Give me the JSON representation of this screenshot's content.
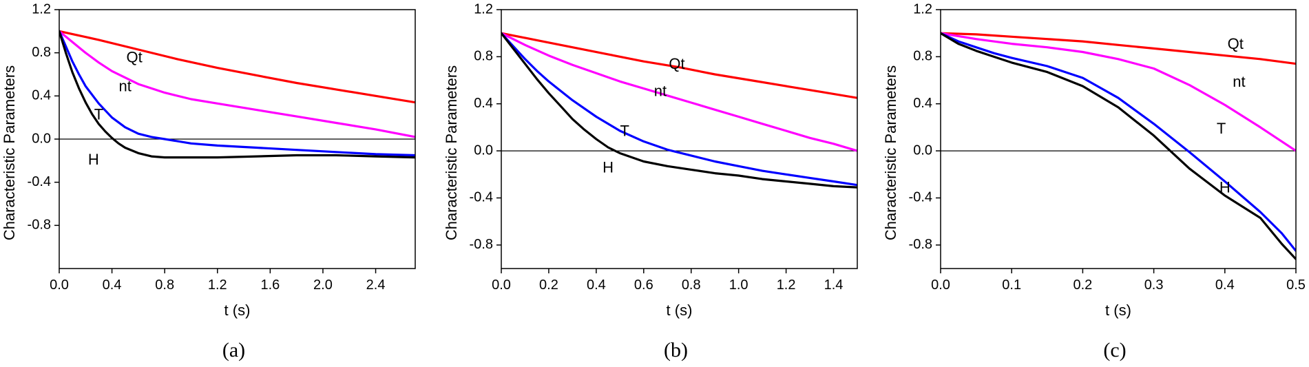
{
  "chart_data": [
    {
      "type": "line",
      "panel_label": "(a)",
      "xlabel": "t (s)",
      "ylabel": "Characteristic Parameters",
      "xlim": [
        0,
        2.7
      ],
      "ylim": [
        -1.2,
        1.2
      ],
      "xticks": [
        0.0,
        0.4,
        0.8,
        1.2,
        1.6,
        2.0,
        2.4
      ],
      "yticks": [
        -0.8,
        -0.4,
        0.0,
        0.4,
        0.8,
        1.2
      ],
      "xtick_labels": [
        "0.0",
        "0.4",
        "0.8",
        "1.2",
        "1.6",
        "2.0",
        "2.4"
      ],
      "ytick_labels": [
        "-0.8",
        "-0.4",
        "0.0",
        "0.4",
        "0.8",
        "1.2"
      ],
      "zero_line": true,
      "series": [
        {
          "name": "Qt",
          "color": "#ff0000",
          "label_at": [
            0.57,
            0.75
          ],
          "x": [
            0,
            0.3,
            0.6,
            0.9,
            1.2,
            1.5,
            1.8,
            2.1,
            2.4,
            2.7
          ],
          "y": [
            1.0,
            0.92,
            0.83,
            0.74,
            0.66,
            0.59,
            0.52,
            0.46,
            0.4,
            0.34
          ]
        },
        {
          "name": "nt",
          "color": "#ff00ff",
          "label_at": [
            0.5,
            0.48
          ],
          "x": [
            0,
            0.1,
            0.2,
            0.3,
            0.4,
            0.6,
            0.8,
            1.0,
            1.2,
            1.5,
            1.8,
            2.1,
            2.4,
            2.7
          ],
          "y": [
            1.0,
            0.9,
            0.8,
            0.71,
            0.63,
            0.51,
            0.43,
            0.37,
            0.33,
            0.27,
            0.21,
            0.15,
            0.09,
            0.02
          ]
        },
        {
          "name": "T",
          "color": "#0000ff",
          "label_at": [
            0.3,
            0.22
          ],
          "x": [
            0,
            0.05,
            0.1,
            0.15,
            0.2,
            0.3,
            0.4,
            0.5,
            0.6,
            0.7,
            0.8,
            1.0,
            1.2,
            1.5,
            1.8,
            2.1,
            2.4,
            2.7
          ],
          "y": [
            1.0,
            0.86,
            0.72,
            0.6,
            0.49,
            0.33,
            0.2,
            0.11,
            0.05,
            0.02,
            0.0,
            -0.04,
            -0.06,
            -0.08,
            -0.1,
            -0.12,
            -0.14,
            -0.15
          ]
        },
        {
          "name": "H",
          "color": "#000000",
          "label_at": [
            0.26,
            -0.2
          ],
          "x": [
            0,
            0.05,
            0.1,
            0.15,
            0.2,
            0.25,
            0.3,
            0.35,
            0.4,
            0.45,
            0.5,
            0.6,
            0.7,
            0.8,
            1.0,
            1.2,
            1.5,
            1.8,
            2.1,
            2.4,
            2.7
          ],
          "y": [
            1.0,
            0.8,
            0.62,
            0.47,
            0.34,
            0.23,
            0.14,
            0.07,
            0.01,
            -0.04,
            -0.08,
            -0.13,
            -0.16,
            -0.17,
            -0.17,
            -0.17,
            -0.16,
            -0.15,
            -0.15,
            -0.16,
            -0.17
          ]
        }
      ]
    },
    {
      "type": "line",
      "panel_label": "(b)",
      "xlabel": "t (s)",
      "ylabel": "Characteristic Parameters",
      "xlim": [
        0,
        1.5
      ],
      "ylim": [
        -1.0,
        1.2
      ],
      "xticks": [
        0.0,
        0.2,
        0.4,
        0.6,
        0.8,
        1.0,
        1.2,
        1.4
      ],
      "yticks": [
        -0.8,
        -0.4,
        0.0,
        0.4,
        0.8,
        1.2
      ],
      "xtick_labels": [
        "0.0",
        "0.2",
        "0.4",
        "0.6",
        "0.8",
        "1.0",
        "1.2",
        "1.4"
      ],
      "ytick_labels": [
        "-0.8",
        "-0.4",
        "0.0",
        "0.4",
        "0.8",
        "1.2"
      ],
      "zero_line": true,
      "series": [
        {
          "name": "Qt",
          "color": "#ff0000",
          "label_at": [
            0.74,
            0.73
          ],
          "x": [
            0,
            0.15,
            0.3,
            0.45,
            0.6,
            0.75,
            0.9,
            1.05,
            1.2,
            1.35,
            1.5
          ],
          "y": [
            1.0,
            0.94,
            0.88,
            0.82,
            0.76,
            0.71,
            0.65,
            0.6,
            0.55,
            0.5,
            0.45
          ]
        },
        {
          "name": "nt",
          "color": "#ff00ff",
          "label_at": [
            0.67,
            0.5
          ],
          "x": [
            0,
            0.1,
            0.2,
            0.3,
            0.4,
            0.5,
            0.6,
            0.7,
            0.8,
            0.9,
            1.0,
            1.1,
            1.2,
            1.3,
            1.4,
            1.5
          ],
          "y": [
            1.0,
            0.9,
            0.81,
            0.73,
            0.66,
            0.59,
            0.53,
            0.47,
            0.41,
            0.35,
            0.29,
            0.23,
            0.17,
            0.11,
            0.06,
            0.0
          ]
        },
        {
          "name": "T",
          "color": "#0000ff",
          "label_at": [
            0.52,
            0.16
          ],
          "x": [
            0,
            0.05,
            0.1,
            0.15,
            0.2,
            0.3,
            0.4,
            0.5,
            0.6,
            0.7,
            0.8,
            0.9,
            1.0,
            1.1,
            1.2,
            1.3,
            1.4,
            1.5
          ],
          "y": [
            1.0,
            0.89,
            0.78,
            0.68,
            0.59,
            0.43,
            0.29,
            0.17,
            0.08,
            0.01,
            -0.04,
            -0.09,
            -0.13,
            -0.17,
            -0.2,
            -0.23,
            -0.26,
            -0.29
          ]
        },
        {
          "name": "H",
          "color": "#000000",
          "label_at": [
            0.45,
            -0.15
          ],
          "x": [
            0,
            0.05,
            0.1,
            0.15,
            0.2,
            0.25,
            0.3,
            0.35,
            0.4,
            0.45,
            0.5,
            0.6,
            0.7,
            0.8,
            0.9,
            1.0,
            1.1,
            1.2,
            1.3,
            1.4,
            1.5
          ],
          "y": [
            1.0,
            0.87,
            0.74,
            0.61,
            0.49,
            0.38,
            0.27,
            0.18,
            0.1,
            0.03,
            -0.02,
            -0.09,
            -0.13,
            -0.16,
            -0.19,
            -0.21,
            -0.24,
            -0.26,
            -0.28,
            -0.3,
            -0.31
          ]
        }
      ]
    },
    {
      "type": "line",
      "panel_label": "(c)",
      "xlabel": "t (s)",
      "ylabel": "Characteristic Parameters",
      "xlim": [
        0,
        0.5
      ],
      "ylim": [
        -1.0,
        1.2
      ],
      "xticks": [
        0.0,
        0.1,
        0.2,
        0.3,
        0.4,
        0.5
      ],
      "yticks": [
        -0.8,
        -0.4,
        0.0,
        0.4,
        0.8,
        1.2
      ],
      "xtick_labels": [
        "0.0",
        "0.1",
        "0.2",
        "0.3",
        "0.4",
        "0.5"
      ],
      "ytick_labels": [
        "-0.8",
        "-0.4",
        "0.0",
        "0.4",
        "0.8",
        "1.2"
      ],
      "zero_line": true,
      "series": [
        {
          "name": "Qt",
          "color": "#ff0000",
          "label_at": [
            0.415,
            0.9
          ],
          "x": [
            0,
            0.05,
            0.1,
            0.15,
            0.2,
            0.25,
            0.3,
            0.35,
            0.4,
            0.45,
            0.5
          ],
          "y": [
            1.0,
            0.99,
            0.97,
            0.95,
            0.93,
            0.9,
            0.87,
            0.84,
            0.81,
            0.78,
            0.74
          ]
        },
        {
          "name": "nt",
          "color": "#ff00ff",
          "label_at": [
            0.42,
            0.58
          ],
          "x": [
            0,
            0.05,
            0.1,
            0.15,
            0.2,
            0.25,
            0.3,
            0.35,
            0.4,
            0.45,
            0.5
          ],
          "y": [
            1.0,
            0.95,
            0.91,
            0.88,
            0.84,
            0.78,
            0.7,
            0.56,
            0.39,
            0.2,
            0.0
          ]
        },
        {
          "name": "T",
          "color": "#0000ff",
          "label_at": [
            0.395,
            0.18
          ],
          "x": [
            0,
            0.025,
            0.05,
            0.075,
            0.1,
            0.15,
            0.2,
            0.25,
            0.3,
            0.35,
            0.4,
            0.45,
            0.48,
            0.5
          ],
          "y": [
            1.0,
            0.93,
            0.88,
            0.83,
            0.79,
            0.72,
            0.62,
            0.45,
            0.23,
            -0.01,
            -0.26,
            -0.52,
            -0.7,
            -0.85
          ]
        },
        {
          "name": "H",
          "color": "#000000",
          "label_at": [
            0.4,
            -0.32
          ],
          "x": [
            0,
            0.025,
            0.05,
            0.075,
            0.1,
            0.15,
            0.2,
            0.25,
            0.3,
            0.35,
            0.4,
            0.45,
            0.48,
            0.5
          ],
          "y": [
            1.0,
            0.91,
            0.85,
            0.8,
            0.75,
            0.67,
            0.55,
            0.37,
            0.13,
            -0.15,
            -0.38,
            -0.57,
            -0.79,
            -0.92
          ]
        }
      ]
    }
  ]
}
